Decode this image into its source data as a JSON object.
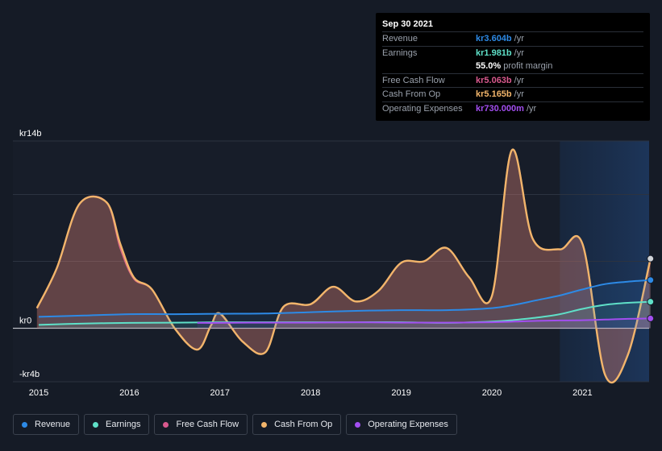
{
  "tooltip": {
    "date": "Sep 30 2021",
    "rows": [
      {
        "label": "Revenue",
        "value": "kr3.604b",
        "unit": "/yr",
        "color": "#2d8ae6"
      },
      {
        "label": "Earnings",
        "value": "kr1.981b",
        "unit": "/yr",
        "color": "#5fe0c8"
      },
      {
        "label": "",
        "value": "55.0%",
        "unit": "profit margin",
        "color": "#ffffff"
      },
      {
        "label": "Free Cash Flow",
        "value": "kr5.063b",
        "unit": "/yr",
        "color": "#d9598e"
      },
      {
        "label": "Cash From Op",
        "value": "kr5.165b",
        "unit": "/yr",
        "color": "#f2b56b"
      },
      {
        "label": "Operating Expenses",
        "value": "kr730.000m",
        "unit": "/yr",
        "color": "#a24ef0"
      }
    ]
  },
  "legend": [
    {
      "label": "Revenue",
      "color": "#2d8ae6"
    },
    {
      "label": "Earnings",
      "color": "#5fe0c8"
    },
    {
      "label": "Free Cash Flow",
      "color": "#d9598e"
    },
    {
      "label": "Cash From Op",
      "color": "#f2b56b"
    },
    {
      "label": "Operating Expenses",
      "color": "#a24ef0"
    }
  ],
  "chart_data": {
    "type": "area",
    "y_unit": "kr billion",
    "ylim": [
      -4,
      14
    ],
    "y_tick_labels": [
      {
        "value": 14,
        "label": "kr14b"
      },
      {
        "value": 0,
        "label": "kr0"
      },
      {
        "value": -4,
        "label": "-kr4b"
      }
    ],
    "xlim": [
      2014.98,
      2021.75
    ],
    "x_ticks": [
      2015,
      2016,
      2017,
      2018,
      2019,
      2020,
      2021
    ],
    "highlight_region": [
      2020.75,
      2021.75
    ],
    "grid": true,
    "series": [
      {
        "name": "Revenue",
        "color": "#2d8ae6",
        "x": [
          2015.0,
          2015.5,
          2016.0,
          2016.5,
          2017.0,
          2017.5,
          2018.0,
          2018.5,
          2019.0,
          2019.5,
          2020.0,
          2020.25,
          2020.5,
          2020.75,
          2021.0,
          2021.25,
          2021.5,
          2021.75
        ],
        "y": [
          0.85,
          0.95,
          1.05,
          1.05,
          1.08,
          1.1,
          1.2,
          1.3,
          1.35,
          1.35,
          1.5,
          1.75,
          2.1,
          2.45,
          2.9,
          3.3,
          3.48,
          3.6
        ]
      },
      {
        "name": "Earnings",
        "color": "#5fe0c8",
        "x": [
          2015.0,
          2015.5,
          2016.0,
          2016.5,
          2017.0,
          2017.5,
          2018.0,
          2018.5,
          2019.0,
          2019.5,
          2020.0,
          2020.25,
          2020.5,
          2020.75,
          2021.0,
          2021.25,
          2021.5,
          2021.75
        ],
        "y": [
          0.25,
          0.35,
          0.4,
          0.42,
          0.45,
          0.45,
          0.45,
          0.45,
          0.45,
          0.4,
          0.5,
          0.62,
          0.8,
          1.05,
          1.45,
          1.75,
          1.9,
          1.98
        ]
      },
      {
        "name": "Free Cash Flow",
        "color": "#d9598e",
        "x": [
          2014.98,
          2015.2,
          2015.45,
          2015.75,
          2015.9,
          2016.05,
          2016.25,
          2016.5,
          2016.75,
          2016.9,
          2017.0,
          2017.25,
          2017.5,
          2017.7,
          2018.0,
          2018.25,
          2018.5,
          2018.75,
          2019.0,
          2019.25,
          2019.5,
          2019.75,
          2020.0,
          2020.22,
          2020.45,
          2020.75,
          2021.0,
          2021.25,
          2021.5,
          2021.75
        ],
        "y": [
          1.5,
          4.5,
          9.3,
          9.4,
          6.0,
          3.7,
          2.9,
          0.0,
          -1.6,
          0.2,
          1.1,
          -1.0,
          -1.8,
          1.6,
          1.8,
          3.1,
          2.0,
          2.8,
          4.9,
          5.0,
          6.0,
          3.8,
          2.4,
          13.3,
          6.7,
          5.9,
          6.3,
          -3.5,
          -2.0,
          5.1
        ]
      },
      {
        "name": "Cash From Op",
        "color": "#f2b56b",
        "x": [
          2014.98,
          2015.2,
          2015.45,
          2015.75,
          2015.9,
          2016.05,
          2016.25,
          2016.5,
          2016.75,
          2016.9,
          2017.0,
          2017.25,
          2017.5,
          2017.7,
          2018.0,
          2018.25,
          2018.5,
          2018.75,
          2019.0,
          2019.25,
          2019.5,
          2019.75,
          2020.0,
          2020.22,
          2020.45,
          2020.75,
          2021.0,
          2021.25,
          2021.5,
          2021.75
        ],
        "y": [
          1.5,
          4.5,
          9.3,
          9.4,
          6.3,
          3.8,
          2.9,
          0.0,
          -1.6,
          0.2,
          1.1,
          -1.0,
          -1.8,
          1.6,
          1.8,
          3.1,
          2.0,
          2.8,
          4.9,
          5.0,
          6.0,
          3.8,
          2.4,
          13.3,
          6.7,
          5.9,
          6.3,
          -3.5,
          -2.0,
          5.2
        ]
      },
      {
        "name": "Operating Expenses",
        "color": "#a24ef0",
        "x": [
          2016.75,
          2017.0,
          2017.5,
          2018.0,
          2018.5,
          2019.0,
          2019.5,
          2020.0,
          2020.25,
          2020.5,
          2020.75,
          2021.0,
          2021.25,
          2021.5,
          2021.75
        ],
        "y": [
          0.4,
          0.4,
          0.42,
          0.42,
          0.45,
          0.42,
          0.42,
          0.45,
          0.5,
          0.55,
          0.58,
          0.6,
          0.65,
          0.7,
          0.73
        ]
      }
    ]
  }
}
